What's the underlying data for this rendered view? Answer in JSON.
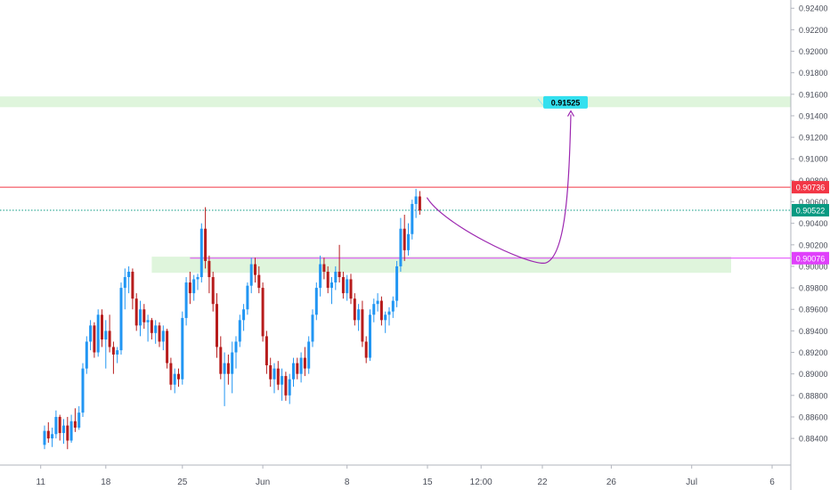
{
  "chart_data": {
    "type": "candlestick",
    "title": "",
    "xlabel": "",
    "ylabel": "",
    "ylim": [
      0.8826,
      0.9246
    ],
    "y_ticks": [
      "0.88400",
      "0.88600",
      "0.88800",
      "0.89000",
      "0.89200",
      "0.89400",
      "0.89600",
      "0.89800",
      "0.90000",
      "0.90200",
      "0.90400",
      "0.90600",
      "0.90800",
      "0.91000",
      "0.91200",
      "0.91400",
      "0.91600",
      "0.91800",
      "0.92000",
      "0.92200",
      "0.92400"
    ],
    "x_ticks": [
      {
        "label": "11",
        "bar": -1
      },
      {
        "label": "18",
        "bar": 16
      },
      {
        "label": "25",
        "bar": 36
      },
      {
        "label": "Jun",
        "bar": 57
      },
      {
        "label": "8",
        "bar": 79
      },
      {
        "label": "15",
        "bar": 100
      },
      {
        "label": "12:00",
        "bar": 114
      },
      {
        "label": "22",
        "bar": 130
      },
      {
        "label": "26",
        "bar": 148
      },
      {
        "label": "Jul",
        "bar": 169
      },
      {
        "label": "6",
        "bar": 190
      }
    ],
    "candles": [
      [
        0.8834,
        0.8852,
        0.883,
        0.8847
      ],
      [
        0.8847,
        0.8855,
        0.8836,
        0.884
      ],
      [
        0.884,
        0.885,
        0.8832,
        0.8844
      ],
      [
        0.8844,
        0.8866,
        0.884,
        0.886
      ],
      [
        0.886,
        0.8862,
        0.8838,
        0.8845
      ],
      [
        0.8845,
        0.8858,
        0.8835,
        0.8852
      ],
      [
        0.8852,
        0.886,
        0.883,
        0.8838
      ],
      [
        0.8838,
        0.8862,
        0.8836,
        0.8856
      ],
      [
        0.8856,
        0.8868,
        0.8846,
        0.885
      ],
      [
        0.885,
        0.887,
        0.8848,
        0.8864
      ],
      [
        0.8864,
        0.891,
        0.886,
        0.8905
      ],
      [
        0.8905,
        0.8935,
        0.89,
        0.893
      ],
      [
        0.893,
        0.895,
        0.8922,
        0.8945
      ],
      [
        0.8945,
        0.8948,
        0.8915,
        0.892
      ],
      [
        0.892,
        0.896,
        0.8916,
        0.8955
      ],
      [
        0.8955,
        0.896,
        0.8925,
        0.8932
      ],
      [
        0.8932,
        0.895,
        0.8905,
        0.894
      ],
      [
        0.894,
        0.8955,
        0.892,
        0.8925
      ],
      [
        0.8925,
        0.893,
        0.89,
        0.8918
      ],
      [
        0.8918,
        0.8925,
        0.891,
        0.8922
      ],
      [
        0.8922,
        0.8985,
        0.8918,
        0.898
      ],
      [
        0.898,
        0.8998,
        0.896,
        0.899
      ],
      [
        0.899,
        0.9,
        0.8975,
        0.8995
      ],
      [
        0.8995,
        0.8998,
        0.896,
        0.897
      ],
      [
        0.897,
        0.8975,
        0.894,
        0.8945
      ],
      [
        0.8945,
        0.8968,
        0.8935,
        0.896
      ],
      [
        0.896,
        0.8965,
        0.8942,
        0.8948
      ],
      [
        0.8948,
        0.8955,
        0.893,
        0.895
      ],
      [
        0.895,
        0.8952,
        0.8932,
        0.8938
      ],
      [
        0.8938,
        0.895,
        0.8928,
        0.8945
      ],
      [
        0.8945,
        0.8948,
        0.8925,
        0.893
      ],
      [
        0.893,
        0.8945,
        0.8922,
        0.894
      ],
      [
        0.894,
        0.8942,
        0.8905,
        0.891
      ],
      [
        0.891,
        0.8915,
        0.8885,
        0.889
      ],
      [
        0.889,
        0.8905,
        0.8882,
        0.89
      ],
      [
        0.89,
        0.8905,
        0.8888,
        0.8895
      ],
      [
        0.8895,
        0.8958,
        0.889,
        0.8952
      ],
      [
        0.8952,
        0.899,
        0.8945,
        0.8985
      ],
      [
        0.8985,
        0.8995,
        0.8965,
        0.8975
      ],
      [
        0.8975,
        0.8992,
        0.8968,
        0.8988
      ],
      [
        0.8988,
        0.8993,
        0.8978,
        0.899
      ],
      [
        0.899,
        0.904,
        0.8985,
        0.9035
      ],
      [
        0.9035,
        0.9055,
        0.8998,
        0.9005
      ],
      [
        0.9005,
        0.901,
        0.8975,
        0.899
      ],
      [
        0.899,
        0.8995,
        0.8958,
        0.8965
      ],
      [
        0.8965,
        0.8975,
        0.8915,
        0.8925
      ],
      [
        0.8925,
        0.8935,
        0.8895,
        0.89
      ],
      [
        0.89,
        0.892,
        0.887,
        0.891
      ],
      [
        0.891,
        0.8918,
        0.889,
        0.89
      ],
      [
        0.89,
        0.893,
        0.8882,
        0.892
      ],
      [
        0.892,
        0.8935,
        0.8905,
        0.893
      ],
      [
        0.893,
        0.8955,
        0.8925,
        0.895
      ],
      [
        0.895,
        0.8965,
        0.894,
        0.896
      ],
      [
        0.896,
        0.8985,
        0.8955,
        0.8982
      ],
      [
        0.8982,
        0.9008,
        0.8975,
        0.9002
      ],
      [
        0.9002,
        0.9008,
        0.8985,
        0.8992
      ],
      [
        0.8992,
        0.9,
        0.8975,
        0.898
      ],
      [
        0.898,
        0.8985,
        0.893,
        0.8935
      ],
      [
        0.8935,
        0.894,
        0.89,
        0.8908
      ],
      [
        0.8908,
        0.8915,
        0.8888,
        0.8895
      ],
      [
        0.8895,
        0.891,
        0.8882,
        0.8905
      ],
      [
        0.8905,
        0.8912,
        0.8885,
        0.889
      ],
      [
        0.889,
        0.8905,
        0.8875,
        0.8898
      ],
      [
        0.8898,
        0.8902,
        0.8875,
        0.888
      ],
      [
        0.888,
        0.89,
        0.8872,
        0.8895
      ],
      [
        0.8895,
        0.8915,
        0.8888,
        0.891
      ],
      [
        0.891,
        0.8915,
        0.8895,
        0.89
      ],
      [
        0.89,
        0.892,
        0.8892,
        0.8915
      ],
      [
        0.8915,
        0.8925,
        0.8898,
        0.8905
      ],
      [
        0.8905,
        0.8935,
        0.89,
        0.893
      ],
      [
        0.893,
        0.896,
        0.8925,
        0.8955
      ],
      [
        0.8955,
        0.8985,
        0.895,
        0.898
      ],
      [
        0.898,
        0.901,
        0.8972,
        0.9002
      ],
      [
        0.9002,
        0.9008,
        0.8988,
        0.8995
      ],
      [
        0.8995,
        0.9,
        0.8975,
        0.898
      ],
      [
        0.898,
        0.899,
        0.8965,
        0.8985
      ],
      [
        0.8985,
        0.9,
        0.8978,
        0.8995
      ],
      [
        0.8995,
        0.902,
        0.8985,
        0.899
      ],
      [
        0.899,
        0.8995,
        0.897,
        0.8975
      ],
      [
        0.8975,
        0.8992,
        0.8968,
        0.8988
      ],
      [
        0.8988,
        0.8993,
        0.8965,
        0.897
      ],
      [
        0.897,
        0.8975,
        0.8945,
        0.895
      ],
      [
        0.895,
        0.8965,
        0.894,
        0.896
      ],
      [
        0.896,
        0.8968,
        0.8925,
        0.893
      ],
      [
        0.893,
        0.8935,
        0.891,
        0.8915
      ],
      [
        0.8915,
        0.896,
        0.8912,
        0.8955
      ],
      [
        0.8955,
        0.897,
        0.8948,
        0.8965
      ],
      [
        0.8965,
        0.8975,
        0.8958,
        0.8968
      ],
      [
        0.8968,
        0.8972,
        0.8945,
        0.895
      ],
      [
        0.895,
        0.8958,
        0.8938,
        0.8955
      ],
      [
        0.8955,
        0.8962,
        0.8945,
        0.8958
      ],
      [
        0.8958,
        0.8972,
        0.8952,
        0.8968
      ],
      [
        0.8968,
        0.9005,
        0.8962,
        0.9
      ],
      [
        0.9,
        0.9045,
        0.8995,
        0.9035
      ],
      [
        0.9035,
        0.9048,
        0.9005,
        0.9015
      ],
      [
        0.9015,
        0.904,
        0.901,
        0.903
      ],
      [
        0.903,
        0.9062,
        0.9025,
        0.9058
      ],
      [
        0.9058,
        0.9072,
        0.9045,
        0.9065
      ],
      [
        0.9065,
        0.907,
        0.9048,
        0.9052
      ]
    ],
    "support_zones": [
      {
        "from": 0.9148,
        "to": 0.9158
      },
      {
        "from": 0.8994,
        "to": 0.9009
      }
    ],
    "levels": [
      {
        "label": "0.90736",
        "value": 0.90736,
        "color": "#f23645",
        "style": "solid"
      },
      {
        "label": "0.90522",
        "value": 0.90522,
        "color": "#089981",
        "style": "dotted"
      },
      {
        "label": "0.90076",
        "value": 0.90076,
        "color": "#e040fb",
        "style": "solid"
      }
    ],
    "target": {
      "label": "0.91525",
      "value": 0.91525
    }
  },
  "colors": {
    "up": "#2196f3",
    "down": "#b71c1c",
    "zone": "#dff5dc",
    "path": "#9c27b0",
    "target_bg": "#33e0ef"
  }
}
